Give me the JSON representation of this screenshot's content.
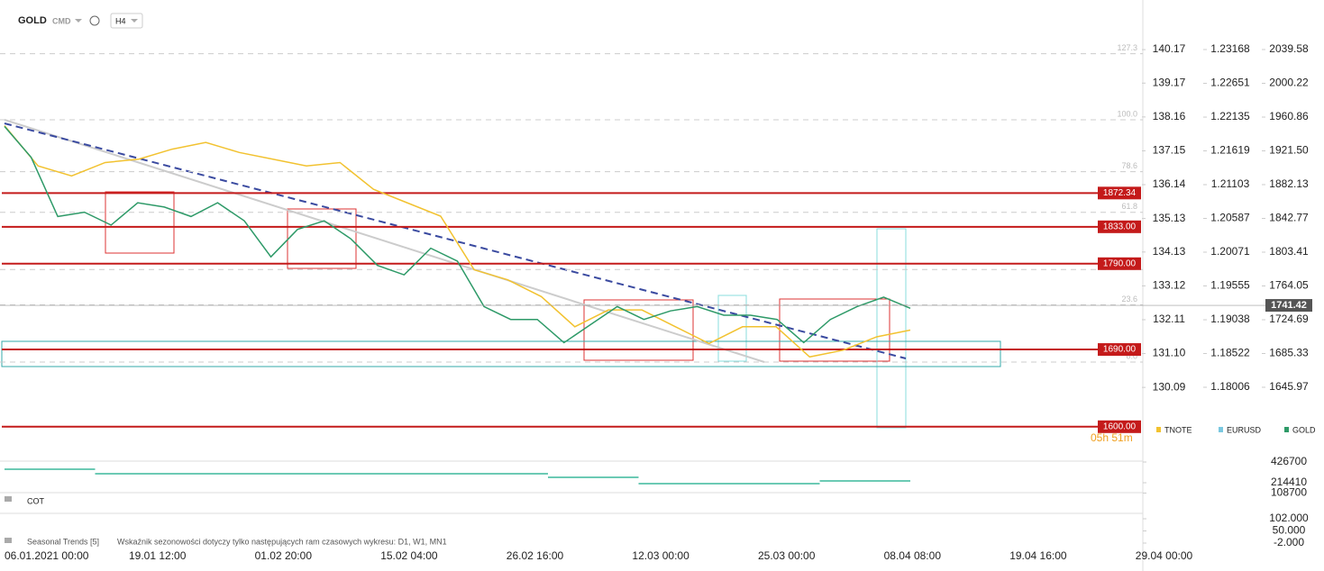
{
  "toolbar": {
    "symbol": "GOLD",
    "market": "CMD",
    "interval": "H4"
  },
  "chart_data": {
    "type": "line",
    "x_labels": [
      "06.01.2021 00:00",
      "19.01 12:00",
      "01.02 20:00",
      "15.02 04:00",
      "26.02 16:00",
      "12.03 00:00",
      "25.03 00:00",
      "08.04 08:00",
      "19.04 16:00",
      "29.04 00:00"
    ],
    "series": [
      {
        "name": "TNOTE",
        "color": "#f2c230",
        "axis": "tnote",
        "values": [
          137.9,
          136.7,
          136.4,
          136.8,
          136.9,
          137.2,
          137.4,
          137.1,
          136.9,
          136.7,
          136.8,
          136.0,
          135.6,
          135.2,
          133.6,
          133.3,
          132.8,
          131.9,
          132.4,
          132.4,
          131.9,
          131.4,
          131.9,
          131.9,
          131.0,
          131.2,
          131.6,
          131.8
        ]
      },
      {
        "name": "EURUSD",
        "color": "#7ac8e0",
        "axis": "eurusd"
      },
      {
        "name": "GOLD",
        "color": "#2e9a68",
        "axis": "gold",
        "values": [
          1950,
          1914,
          1845,
          1850,
          1835,
          1861,
          1856,
          1845,
          1861,
          1840,
          1798,
          1830,
          1840,
          1819,
          1788,
          1777,
          1808,
          1793,
          1740,
          1725,
          1725,
          1698,
          1719,
          1740,
          1725,
          1735,
          1740,
          1730,
          1730,
          1725,
          1698,
          1725,
          1740,
          1751,
          1738
        ]
      }
    ],
    "axes": {
      "tnote": {
        "ylim": [
          128.75,
          141.65
        ],
        "yticks": [
          140.17,
          139.17,
          138.16,
          137.15,
          136.14,
          135.13,
          134.13,
          133.12,
          132.11,
          {
            "value": 131.1,
            "label": "131.10"
          },
          130.09
        ]
      },
      "eurusd": {
        "ylim": [
          1.17318,
          1.23925
        ],
        "yticks": [
          1.23168,
          1.22651,
          1.22135,
          1.21619,
          1.21103,
          1.20587,
          1.20071,
          1.19555,
          1.19038,
          1.18522,
          1.18006
        ]
      },
      "gold": {
        "ylim": [
          1593.5,
          2097.31
        ],
        "yticks": [
          2039.58,
          2000.22,
          1960.86,
          {
            "value": 1921.5,
            "label": "1921.50"
          },
          1882.13,
          1842.77,
          1803.41,
          1764.05,
          1724.69,
          1685.33,
          1645.97
        ]
      }
    },
    "levels": [
      {
        "value": 1872.34,
        "label": "1872.34"
      },
      {
        "value": 1833,
        "label": "1833.00"
      },
      {
        "value": 1790,
        "label": "1790.00"
      },
      {
        "value": 1690,
        "label": "1690.00"
      },
      {
        "value": 1600,
        "label": "1600.00"
      }
    ],
    "last_price": 1741.42,
    "countdown": "05h 51m",
    "fib": {
      "low": 1675.4,
      "high": 1957.7,
      "levels": [
        {
          "value": 127.3,
          "label": "127.3"
        },
        {
          "value": 100,
          "label": "100.0"
        },
        {
          "value": 78.6,
          "label": "78.6"
        },
        {
          "value": 61.8,
          "label": "61.8"
        },
        {
          "value": 38.2,
          "label": "38.2"
        },
        {
          "value": 23.6,
          "label": "23.6"
        },
        {
          "value": 0,
          "label": "0.0"
        }
      ]
    }
  },
  "indicator": {
    "ylim": [
      85190,
      454390
    ],
    "yticks": [
      426700,
      214410,
      108700
    ],
    "color": "#3cb89c",
    "values": [
      352860,
      306700,
      306700,
      306700,
      306700,
      306700,
      269800,
      205200,
      205200,
      232900
    ]
  },
  "cot": {
    "name": "COT"
  },
  "seasonal": {
    "name": "Seasonal Trends [5]",
    "note": "Wskaźnik sezonowości dotyczy tylko następujących ram czasowych wykresu: D1, W1, MN1",
    "yticks": [
      {
        "value": 102,
        "label": "102.000"
      },
      {
        "value": 50,
        "label": "50.000"
      },
      {
        "value": -2,
        "label": "-2.000"
      }
    ]
  }
}
